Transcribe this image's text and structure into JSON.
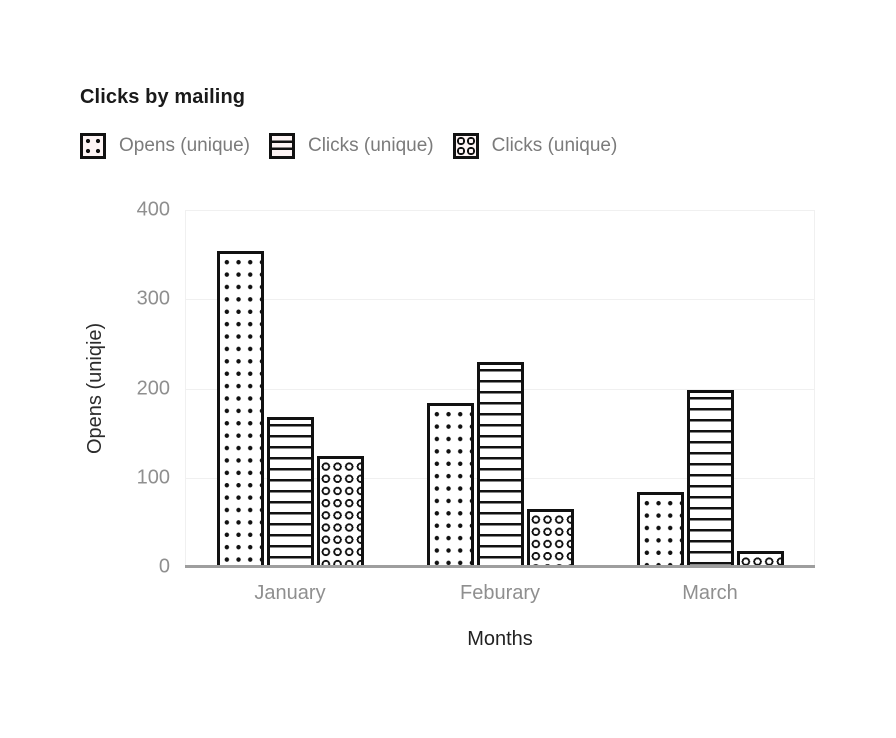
{
  "chart": {
    "title": "Clicks by mailing"
  },
  "legend": {
    "items": [
      {
        "label": "Opens (unique)",
        "pattern": "dots"
      },
      {
        "label": "Clicks (unique)",
        "pattern": "hlines"
      },
      {
        "label": "Clicks (unique)",
        "pattern": "rings"
      }
    ]
  },
  "chart_data": {
    "type": "bar",
    "title": "Clicks by mailing",
    "categories": [
      "January",
      "Feburary",
      "March"
    ],
    "series": [
      {
        "name": "Opens (unique)",
        "pattern": "dots",
        "values": [
          354,
          184,
          84
        ]
      },
      {
        "name": "Clicks (unique)",
        "pattern": "hlines",
        "values": [
          168,
          230,
          198
        ]
      },
      {
        "name": "Clicks (unique)",
        "pattern": "rings",
        "values": [
          124,
          65,
          18
        ]
      }
    ],
    "xlabel": "Months",
    "ylabel": "Opens (uniqie)",
    "ylim": [
      0,
      400
    ],
    "yticks": [
      0,
      100,
      200,
      300,
      400
    ],
    "grid": true,
    "legend_position": "top",
    "colors": {
      "bar_fill": "#ffffff",
      "pattern_ink": "#111111",
      "axis_line": "#9e9e9e",
      "gridline": "#f0f0f0",
      "tick_text": "#8f8f8f",
      "axis_title_text": "#262626",
      "title_text": "#1a1a1a",
      "legend_text": "#7b7b7b"
    }
  }
}
